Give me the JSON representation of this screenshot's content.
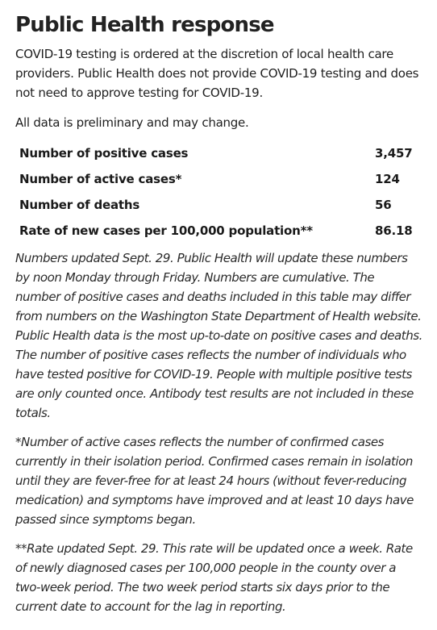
{
  "page": {
    "title": "Public Health response",
    "intro": "COVID-19 testing is ordered at the discretion of local health care providers. Public Health does not provide COVID-19 testing and does not need to approve testing for COVID-19.",
    "preliminary": "All data is preliminary and may change."
  },
  "stats": [
    {
      "label": "Number of positive cases",
      "value": "3,457"
    },
    {
      "label": "Number of active cases*",
      "value": "124"
    },
    {
      "label": "Number of deaths",
      "value": "56"
    },
    {
      "label": "Rate of new cases per 100,000 population**",
      "value": "86.18"
    }
  ],
  "notes": {
    "updated": "Numbers updated Sept. 29. Public Health will update these numbers by noon Monday through Friday. Numbers are cumulative. The number of positive cases and deaths included in this table may differ from numbers on the Washington State Department of Health website. Public Health data is the most up-to-date on positive cases and deaths. The number of positive cases reflects the number of individuals who have tested positive for COVID-19. People with multiple positive tests are only counted once. Antibody test results are not included in these totals.",
    "active": "*Number of active cases reflects the number of confirmed cases currently in their isolation period. Confirmed cases remain in isolation until they are fever-free for at least 24 hours (without fever-reducing medication) and symptoms have improved and at least 10 days have passed since symptoms began.",
    "rate": "**Rate updated Sept. 29. This rate will be updated once a week. Rate of newly diagnosed cases per 100,000 people in the county over a two-week period. The two week period starts six days prior to the current date to account for the lag in reporting."
  }
}
